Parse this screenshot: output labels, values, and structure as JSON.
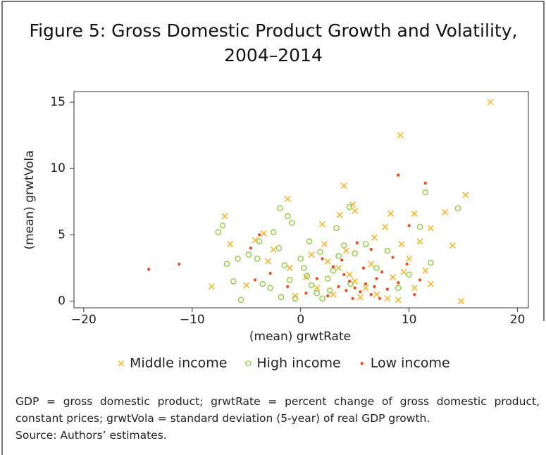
{
  "chart_data": {
    "type": "scatter",
    "title": "Figure 5: Gross Domestic Product Growth and Volatility, 2004–2014",
    "xlabel": "(mean) grwtRate",
    "ylabel": "(mean) grwtVola",
    "xlim": [
      -20.9,
      21
    ],
    "ylim": [
      -0.5,
      15.8
    ],
    "xticks": [
      {
        "value": -20,
        "label": "−20"
      },
      {
        "value": -10,
        "label": "−10"
      },
      0,
      10,
      20
    ],
    "yticks": [
      0,
      5,
      10,
      15
    ],
    "legend": "bottom",
    "series": [
      {
        "name": "Middle income",
        "color": "#f5b01e",
        "marker": "x",
        "x": [
          17.5,
          9.2,
          4,
          -1.2,
          15.2,
          10.5,
          13.3,
          8.3,
          -7,
          4.8,
          5,
          12,
          14,
          14.8,
          -8.2,
          -3.4,
          -4.2,
          -6.5,
          11,
          9.3,
          7.8,
          3.6,
          2,
          6.8,
          -2.5,
          1,
          2.5,
          3.5,
          4.5,
          5,
          6,
          7,
          8,
          9,
          10.5,
          11.5,
          10,
          12,
          -1,
          0.5,
          1.5,
          3,
          5.5,
          6.5,
          8.5,
          9.5,
          -5,
          -3,
          -0.5,
          2.2,
          4.2
        ],
        "values": [
          15,
          12.5,
          8.7,
          7.7,
          8,
          6.6,
          6.7,
          6.6,
          6.4,
          7.3,
          6.8,
          5.5,
          4.2,
          0,
          1.1,
          5.1,
          4.6,
          4.3,
          4.5,
          4.3,
          5.6,
          6.5,
          5.8,
          4.8,
          3.9,
          3.5,
          3,
          2.5,
          2,
          1.5,
          1,
          0.5,
          0.2,
          0.1,
          1,
          2.3,
          3.2,
          1.3,
          2.5,
          1.8,
          1,
          0.5,
          0.3,
          2.8,
          1.8,
          2.2,
          1.2,
          3,
          0.4,
          4.3,
          3.8
        ]
      },
      {
        "name": "High income",
        "color": "#8cc63e",
        "marker": "o",
        "x": [
          11.5,
          14.5,
          -1.9,
          -7.6,
          -7.2,
          -1.2,
          -0.8,
          3.3,
          4.5,
          -2.5,
          -6.8,
          -6.2,
          -5.5,
          -4.8,
          -4,
          -3.5,
          -2,
          -1.5,
          -1,
          -0.5,
          0,
          0.3,
          0.6,
          1,
          1.5,
          2,
          2.5,
          3,
          3.5,
          4,
          5,
          6,
          7,
          8,
          9,
          10,
          11,
          12,
          1.8,
          0.8,
          -2.8,
          -3.8,
          2.7,
          4.6,
          -5.8,
          -1.8
        ],
        "values": [
          8.2,
          7,
          7,
          5.2,
          5.7,
          6.4,
          5.9,
          5.5,
          7.1,
          5.2,
          2.8,
          1.5,
          0.1,
          3.5,
          3.2,
          1.3,
          4,
          2.7,
          1.6,
          0.2,
          3.2,
          2.5,
          1.9,
          1.2,
          0.6,
          0.2,
          1.7,
          2.3,
          3.4,
          4.2,
          3.6,
          4.3,
          2.5,
          3.8,
          1,
          2,
          5.6,
          2.9,
          3.7,
          4.5,
          1,
          4.5,
          0.8,
          1.3,
          3.2,
          0.3
        ]
      },
      {
        "name": "Low income",
        "color": "#e8491d",
        "marker": "dot",
        "x": [
          -14,
          -11.2,
          9,
          11.5,
          -4.6,
          -3.8,
          -2.8,
          10,
          9.8,
          6.5,
          2,
          3,
          4,
          4.5,
          5,
          5.5,
          6,
          6.5,
          7,
          7.5,
          8,
          3.5,
          2.5,
          4.8,
          5.8,
          6.8,
          3.8,
          1.5,
          8.5,
          10.5,
          11,
          -1.2,
          0.5,
          -4.2,
          5.2,
          7.3,
          9,
          4.2
        ],
        "values": [
          2.4,
          2.8,
          9.5,
          8.9,
          4,
          5,
          2.1,
          5.7,
          2.8,
          3.9,
          3.2,
          2.6,
          2,
          1.5,
          1,
          0.7,
          1.3,
          0.5,
          1.7,
          2.2,
          0.9,
          1.1,
          0.4,
          0.2,
          2.5,
          1.1,
          3.1,
          1.7,
          3.3,
          0.5,
          1.6,
          1.1,
          0.6,
          1.6,
          4.4,
          0.2,
          1.4,
          0.8
        ]
      }
    ],
    "note": "GDP = gross domestic product; grwtRate = percent change of gross domestic product, constant prices; grwtVola = standard deviation (5-year) of real GDP growth.",
    "source": "Source: Authors’ estimates."
  }
}
